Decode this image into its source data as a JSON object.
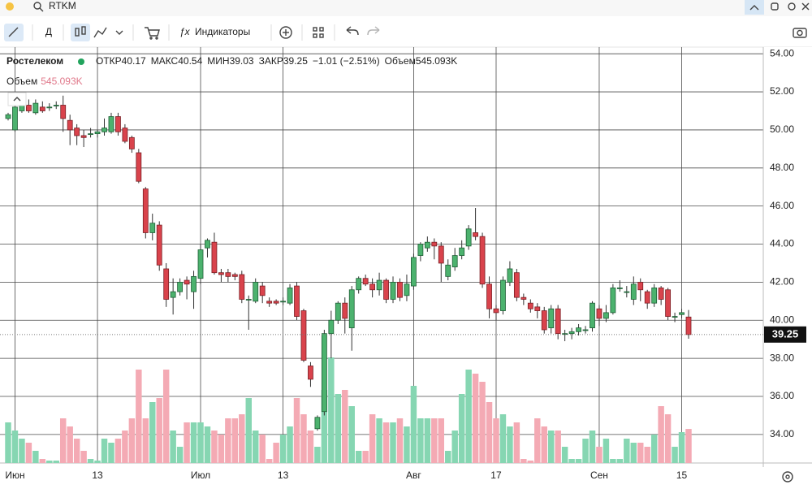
{
  "app": {
    "search": "RTKM",
    "period_button": "Д",
    "indicators_button": "Индикаторы"
  },
  "chart_data": {
    "type": "candlestick",
    "legend": {
      "name": "Ростелеком",
      "open_label": "ОТКР",
      "high_label": "МАКС",
      "low_label": "МИН",
      "close_label": "ЗАКР",
      "change": "−1.01 (−2.51%)",
      "volume_label": "Объем",
      "volume_value_label": "545.093K"
    },
    "categories": [
      null,
      "Июн",
      null,
      null,
      null,
      null,
      null,
      null,
      null,
      null,
      null,
      null,
      null,
      "13",
      null,
      null,
      null,
      null,
      null,
      null,
      null,
      null,
      null,
      null,
      null,
      null,
      null,
      null,
      "Июл",
      null,
      null,
      null,
      null,
      null,
      null,
      null,
      null,
      null,
      null,
      null,
      "13",
      null,
      null,
      null,
      null,
      null,
      null,
      null,
      null,
      null,
      null,
      null,
      null,
      null,
      null,
      null,
      null,
      null,
      null,
      "Авг",
      null,
      null,
      null,
      null,
      null,
      null,
      null,
      null,
      null,
      null,
      null,
      "17",
      null,
      null,
      null,
      null,
      null,
      null,
      null,
      null,
      null,
      null,
      null,
      null,
      null,
      null,
      "Сен",
      null,
      null,
      null,
      null,
      null,
      null,
      null,
      null,
      null,
      null,
      null,
      "15",
      null
    ],
    "open": [
      50.6,
      50.0,
      51.0,
      51.3,
      50.9,
      51.2,
      51.2,
      51.3,
      51.3,
      50.5,
      50.1,
      49.7,
      49.8,
      49.8,
      49.9,
      49.9,
      50.7,
      50.1,
      49.6,
      48.8,
      46.9,
      44.6,
      45.0,
      42.7,
      41.2,
      41.5,
      42.1,
      41.5,
      42.2,
      43.8,
      44.1,
      42.5,
      42.5,
      42.4,
      42.4,
      41.1,
      41.0,
      41.8,
      41.0,
      41.0,
      41.0,
      40.9,
      41.8,
      40.5,
      37.6,
      34.3,
      35.2,
      39.3,
      40.0,
      40.9,
      39.6,
      41.6,
      42.2,
      41.9,
      41.6,
      42.1,
      41.1,
      42.0,
      41.3,
      41.8,
      43.4,
      43.8,
      44.1,
      43.9,
      42.3,
      42.8,
      43.4,
      43.9,
      44.6,
      44.4,
      41.9,
      40.6,
      40.5,
      42.0,
      42.5,
      41.2,
      40.9,
      40.7,
      40.5,
      39.6,
      40.6,
      39.3,
      39.3,
      39.4,
      39.5,
      39.6,
      40.6,
      40.1,
      40.4,
      41.7,
      41.5,
      41.1,
      42.0,
      41.5,
      40.9,
      41.7,
      41.6,
      40.2,
      40.3,
      40.17
    ],
    "high": [
      50.9,
      51.3,
      51.6,
      51.6,
      51.6,
      51.5,
      51.4,
      51.5,
      51.8,
      50.8,
      50.3,
      50.0,
      50.1,
      50.0,
      50.6,
      50.9,
      50.9,
      50.3,
      49.7,
      49.0,
      47.0,
      45.6,
      45.2,
      43.0,
      42.2,
      42.2,
      42.3,
      42.6,
      44.0,
      44.3,
      44.6,
      42.7,
      42.7,
      42.5,
      42.6,
      41.3,
      42.2,
      42.0,
      41.2,
      41.1,
      41.2,
      41.9,
      42.0,
      40.6,
      37.8,
      35.0,
      39.5,
      40.5,
      41.0,
      41.2,
      41.8,
      42.3,
      42.4,
      42.2,
      42.5,
      42.2,
      42.3,
      42.2,
      42.4,
      43.5,
      44.1,
      44.4,
      44.3,
      44.1,
      43.2,
      43.8,
      44.2,
      45.0,
      45.9,
      44.6,
      42.3,
      40.8,
      42.3,
      43.1,
      42.7,
      41.4,
      41.1,
      40.9,
      40.7,
      40.8,
      40.8,
      39.5,
      39.6,
      39.8,
      39.7,
      41.0,
      40.8,
      40.8,
      41.9,
      42.1,
      41.8,
      42.3,
      42.2,
      41.6,
      41.9,
      41.8,
      41.7,
      40.4,
      40.6,
      40.54
    ],
    "low": [
      50.5,
      49.9,
      50.9,
      50.9,
      50.8,
      50.9,
      51.0,
      51.1,
      49.9,
      49.2,
      49.2,
      49.1,
      49.6,
      49.6,
      49.7,
      49.8,
      49.7,
      49.3,
      48.8,
      47.2,
      44.3,
      44.2,
      42.6,
      40.7,
      40.3,
      41.3,
      41.1,
      40.6,
      41.9,
      43.3,
      42.4,
      42.0,
      42.0,
      42.1,
      40.9,
      39.5,
      40.9,
      40.9,
      40.7,
      40.8,
      40.8,
      40.8,
      40.0,
      37.8,
      36.5,
      34.2,
      35.0,
      38.0,
      39.8,
      39.3,
      38.4,
      41.4,
      41.8,
      41.2,
      41.3,
      40.9,
      40.9,
      41.0,
      41.0,
      41.6,
      43.1,
      43.6,
      43.2,
      42.0,
      42.1,
      42.6,
      43.2,
      43.7,
      44.2,
      41.7,
      40.1,
      40.0,
      40.3,
      41.8,
      41.0,
      40.8,
      40.4,
      40.1,
      39.3,
      39.3,
      39.0,
      38.9,
      39.0,
      39.2,
      39.3,
      39.4,
      39.7,
      39.9,
      40.3,
      41.5,
      41.2,
      40.8,
      41.0,
      40.6,
      40.7,
      40.8,
      40.0,
      39.9,
      40.1,
      39.03
    ],
    "close": [
      50.8,
      51.2,
      51.3,
      51.0,
      51.4,
      51.0,
      51.2,
      51.3,
      50.6,
      50.0,
      49.7,
      49.6,
      49.8,
      49.9,
      50.1,
      50.7,
      49.9,
      49.4,
      49.0,
      47.3,
      44.6,
      45.1,
      42.9,
      41.1,
      41.5,
      42.0,
      41.9,
      42.3,
      43.7,
      44.2,
      42.5,
      42.4,
      42.3,
      42.3,
      41.1,
      41.1,
      42.0,
      41.3,
      40.9,
      40.9,
      41.0,
      41.7,
      40.2,
      37.9,
      36.9,
      34.9,
      39.3,
      40.0,
      40.9,
      40.1,
      41.6,
      42.2,
      41.9,
      41.6,
      42.1,
      41.1,
      42.0,
      41.2,
      41.9,
      43.3,
      44.0,
      44.1,
      43.9,
      43.0,
      42.9,
      43.4,
      43.8,
      44.8,
      44.4,
      41.9,
      40.6,
      40.4,
      42.1,
      42.7,
      41.2,
      41.1,
      40.6,
      40.5,
      39.5,
      40.6,
      39.3,
      39.3,
      39.4,
      39.6,
      39.5,
      40.9,
      40.1,
      40.4,
      41.7,
      41.7,
      41.5,
      41.9,
      41.6,
      40.9,
      41.7,
      41.1,
      40.2,
      40.2,
      40.4,
      39.25
    ],
    "volume": [
      650,
      520,
      390,
      325,
      195,
      65,
      39,
      39,
      715,
      585,
      390,
      195,
      65,
      39,
      390,
      325,
      390,
      520,
      715,
      1495,
      715,
      975,
      1040,
      1495,
      520,
      260,
      650,
      650,
      650,
      585,
      520,
      455,
      715,
      715,
      780,
      1040,
      520,
      455,
      65,
      325,
      455,
      585,
      1040,
      780,
      520,
      260,
      1170,
      1690,
      1105,
      1170,
      910,
      195,
      195,
      780,
      715,
      650,
      650,
      715,
      585,
      1235,
      715,
      715,
      715,
      715,
      195,
      520,
      1105,
      1495,
      1430,
      1300,
      975,
      715,
      780,
      585,
      650,
      65,
      39,
      715,
      585,
      520,
      520,
      260,
      65,
      65,
      390,
      520,
      260,
      390,
      65,
      65,
      390,
      325,
      325,
      260,
      455,
      910,
      780,
      260,
      494,
      545.093
    ],
    "ylim": [
      32.5,
      54.35
    ],
    "yticks": [
      {
        "value": 34,
        "label": "34.00"
      },
      {
        "value": 36,
        "label": "36.00"
      },
      {
        "value": 38,
        "label": "38.00"
      },
      {
        "value": 40,
        "label": "40.00"
      },
      {
        "value": 42,
        "label": "42.00"
      },
      {
        "value": 44,
        "label": "44.00"
      },
      {
        "value": 46,
        "label": "46.00"
      },
      {
        "value": 48,
        "label": "48.00"
      },
      {
        "value": 50,
        "label": "50.00"
      },
      {
        "value": 52,
        "label": "52.00"
      },
      {
        "value": 54,
        "label": "54.00"
      }
    ],
    "grid": true,
    "up_color": "#4cb26e",
    "down_color": "#d9434c",
    "up_volume_color": "#86d6b2",
    "down_volume_color": "#f4aab4"
  }
}
